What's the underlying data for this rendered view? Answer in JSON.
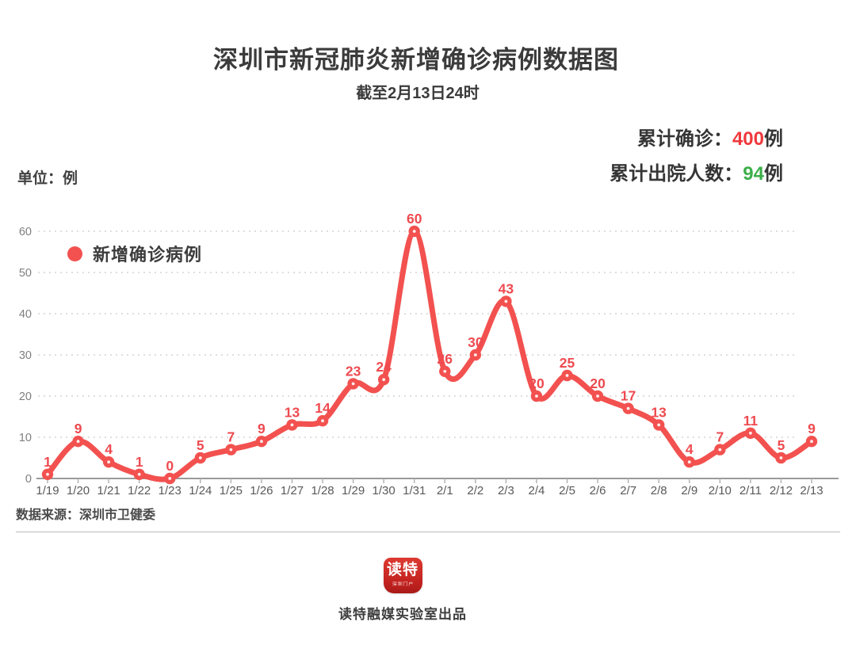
{
  "page": {
    "title": "深圳市新冠肺炎新增确诊病例数据图",
    "subtitle": "截至2月13日24时",
    "unit_label": "单位：例"
  },
  "stats": {
    "confirmed_label": "累计确诊：",
    "confirmed_value": "400",
    "confirmed_unit": "例",
    "discharged_label": "累计出院人数：",
    "discharged_value": "94",
    "discharged_unit": "例"
  },
  "legend": {
    "label": "新增确诊病例"
  },
  "chart_data": {
    "type": "line",
    "smooth": true,
    "title": "深圳市新冠肺炎新增确诊病例数据图",
    "subtitle": "截至2月13日24时",
    "unit": "单位：例",
    "legend_entries": [
      "新增确诊病例"
    ],
    "legend_position": "top-left inside plot",
    "grid": "horizontal dotted",
    "categories": [
      "1/19",
      "1/20",
      "1/21",
      "1/22",
      "1/23",
      "1/24",
      "1/25",
      "1/26",
      "1/27",
      "1/28",
      "1/29",
      "1/30",
      "1/31",
      "2/1",
      "2/2",
      "2/3",
      "2/4",
      "2/5",
      "2/6",
      "2/7",
      "2/8",
      "2/9",
      "2/10",
      "2/11",
      "2/12",
      "2/13"
    ],
    "series": [
      {
        "name": "新增确诊病例",
        "values": [
          1,
          9,
          4,
          1,
          0,
          5,
          7,
          9,
          13,
          14,
          23,
          24,
          60,
          26,
          30,
          43,
          20,
          25,
          20,
          17,
          13,
          4,
          7,
          11,
          5,
          9
        ]
      }
    ],
    "ylim": [
      0,
      60
    ],
    "yticks": [
      0,
      10,
      20,
      30,
      40,
      50,
      60
    ],
    "annotations": [
      "累计确诊：400例",
      "累计出院人数：94例"
    ],
    "line_color": "#f2514f",
    "point_label_color": "#ee4a50"
  },
  "footer": {
    "source": "数据来源：深圳市卫健委",
    "logo_text": "读特",
    "logo_subtext": "深圳门户",
    "credit": "读特融媒实验室出品"
  },
  "colors": {
    "accent_red": "#f2514f",
    "value_red": "#ef383c",
    "value_green": "#3cae4a",
    "title_gray": "#3b3b3b",
    "x_label_gray": "#595959",
    "y_label_gray": "#7f7f7f",
    "gridline_gray": "#d9d9d9",
    "axis_gray": "#9a9a9a"
  }
}
